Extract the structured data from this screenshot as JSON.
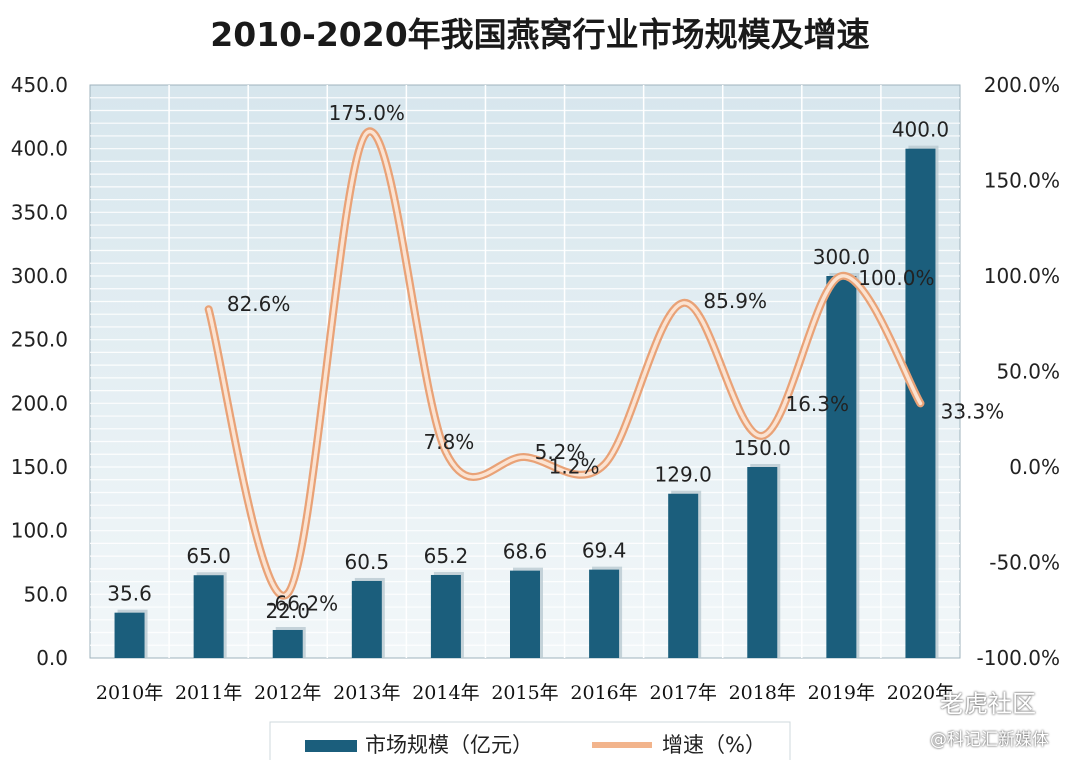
{
  "chart_data": {
    "type": "bar",
    "title": "2010-2020年我国燕窝行业市场规模及增速",
    "categories": [
      "2010年",
      "2011年",
      "2012年",
      "2013年",
      "2014年",
      "2015年",
      "2016年",
      "2017年",
      "2018年",
      "2019年",
      "2020年"
    ],
    "series": [
      {
        "name": "市场规模（亿元）",
        "type": "bar",
        "axis": "left",
        "color": "#1b5e7c",
        "values": [
          35.6,
          65.0,
          22.0,
          60.5,
          65.2,
          68.6,
          69.4,
          129.0,
          150.0,
          300.0,
          400.0
        ],
        "labels": [
          "35.6",
          "65.0",
          "22.0",
          "60.5",
          "65.2",
          "68.6",
          "69.4",
          "129.0",
          "150.0",
          "300.0",
          "400.0"
        ]
      },
      {
        "name": "增速（%）",
        "type": "line",
        "axis": "right",
        "color": "#f2b48c",
        "values": [
          null,
          82.6,
          -66.2,
          175.0,
          7.8,
          5.2,
          1.2,
          85.9,
          16.3,
          100.0,
          33.3
        ],
        "labels": [
          "",
          "82.6%",
          "-66.2%",
          "175.0%",
          "7.8%",
          "5.2%",
          "1.2%",
          "85.9%",
          "16.3%",
          "100.0%",
          "33.3%"
        ]
      }
    ],
    "y_left": {
      "min": 0,
      "max": 450,
      "step": 50,
      "tick_labels": [
        "0.0",
        "50.0",
        "100.0",
        "150.0",
        "200.0",
        "250.0",
        "300.0",
        "350.0",
        "400.0",
        "450.0"
      ]
    },
    "y_right": {
      "min": -100,
      "max": 200,
      "step": 50,
      "tick_labels": [
        "-100.0%",
        "-50.0%",
        "0.0%",
        "50.0%",
        "100.0%",
        "150.0%",
        "200.0%"
      ]
    },
    "grid": true,
    "legend_position": "bottom"
  },
  "watermarks": [
    "老虎社区",
    "@科记汇新媒体"
  ]
}
